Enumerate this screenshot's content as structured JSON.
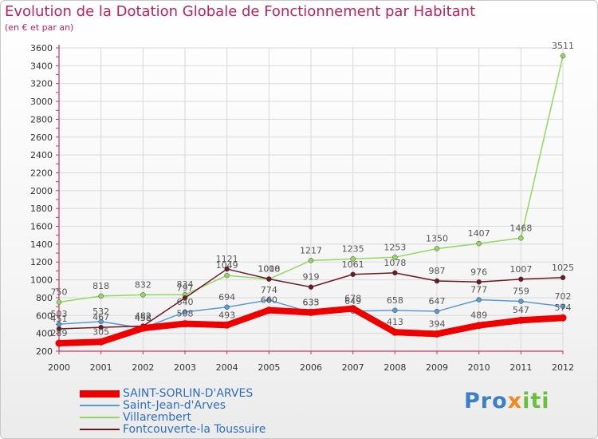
{
  "title": "Evolution de la Dotation Globale de Fonctionnement par Habitant",
  "subtitle": "(en € et par an)",
  "logo": {
    "part1": "Pro",
    "part2": "x",
    "part3": "iti"
  },
  "colors": {
    "title": "#c02060",
    "axis": "#cc3366",
    "grid": "#d9d9d9",
    "label": "#555555",
    "legend_text": "#2f6dbf"
  },
  "chart_data": {
    "type": "line",
    "title": "Evolution de la Dotation Globale de Fonctionnement par Habitant",
    "subtitle": "(en € et par an)",
    "x": [
      "2000",
      "2001",
      "2002",
      "2003",
      "2004",
      "2005",
      "2006",
      "2007",
      "2008",
      "2009",
      "2010",
      "2011",
      "2012"
    ],
    "ylim": [
      200,
      3600
    ],
    "yticks": [
      200,
      400,
      600,
      800,
      1000,
      1200,
      1400,
      1600,
      1800,
      2000,
      2200,
      2400,
      2600,
      2800,
      3000,
      3200,
      3400,
      3600
    ],
    "grid": true,
    "legend_position": "bottom-left",
    "series": [
      {
        "name": "SAINT-SORLIN-D'ARVES",
        "color": "#ee0000",
        "width": 8,
        "values": [
          289,
          305,
          458,
          508,
          493,
          660,
          635,
          678,
          413,
          394,
          489,
          547,
          574
        ]
      },
      {
        "name": "Saint-Jean-d'Arves",
        "color": "#5b9bd5",
        "width": 1.5,
        "values": [
          503,
          532,
          458,
          640,
          694,
          774,
          633,
          649,
          658,
          647,
          777,
          759,
          702
        ]
      },
      {
        "name": "Villarembert",
        "color": "#90d860",
        "width": 1.5,
        "values": [
          750,
          818,
          832,
          834,
          1049,
          1008,
          1217,
          1235,
          1253,
          1350,
          1407,
          1468,
          3511
        ]
      },
      {
        "name": "Fontcouverte-la Toussuire",
        "color": "#6a1a24",
        "width": 1.5,
        "values": [
          451,
          467,
          482,
          797,
          1121,
          1010,
          919,
          1061,
          1078,
          987,
          976,
          1007,
          1025
        ]
      }
    ]
  }
}
